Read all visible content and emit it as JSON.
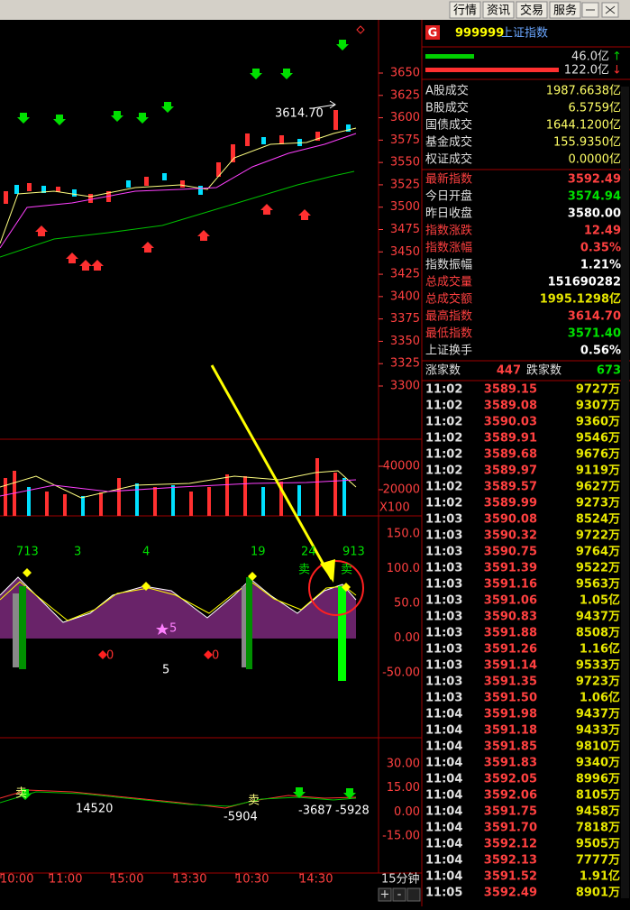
{
  "toolbar": {
    "buttons": [
      "行情",
      "资讯",
      "交易",
      "服务"
    ]
  },
  "quote": {
    "icon": "G",
    "code": "999999",
    "name": "上证指数",
    "flow": [
      {
        "value": "46.0亿",
        "color": "#00d000",
        "arrow": "↑"
      },
      {
        "value": "122.0亿",
        "color": "#ff3030",
        "arrow": "↓"
      }
    ],
    "turnover": [
      {
        "label": "A股成交",
        "value": "1987.6638亿"
      },
      {
        "label": "B股成交",
        "value": "6.5759亿"
      },
      {
        "label": "国债成交",
        "value": "1644.1200亿"
      },
      {
        "label": "基金成交",
        "value": "155.9350亿"
      },
      {
        "label": "权证成交",
        "value": "0.0000亿"
      }
    ],
    "stats": [
      {
        "label": "最新指数",
        "value": "3592.49",
        "label_color": "#ff4040",
        "color": "#ff4040"
      },
      {
        "label": "今日开盘",
        "value": "3574.94",
        "label_color": "#e0e0e0",
        "color": "#00e000"
      },
      {
        "label": "昨日收盘",
        "value": "3580.00",
        "label_color": "#e0e0e0",
        "color": "#ffffff"
      },
      {
        "label": "指数涨跌",
        "value": "12.49",
        "label_color": "#ff4040",
        "color": "#ff4040"
      },
      {
        "label": "指数涨幅",
        "value": "0.35%",
        "label_color": "#ff4040",
        "color": "#ff4040"
      },
      {
        "label": "指数振幅",
        "value": "1.21%",
        "label_color": "#e0e0e0",
        "color": "#ffffff"
      },
      {
        "label": "总成交量",
        "value": "151690282",
        "label_color": "#ff4040",
        "color": "#ffffff"
      },
      {
        "label": "总成交额",
        "value": "1995.1298亿",
        "label_color": "#ff4040",
        "color": "#e6e600"
      },
      {
        "label": "最高指数",
        "value": "3614.70",
        "label_color": "#ff4040",
        "color": "#ff4040"
      },
      {
        "label": "最低指数",
        "value": "3571.40",
        "label_color": "#ff4040",
        "color": "#00e000"
      },
      {
        "label": "上证换手",
        "value": "0.56%",
        "label_color": "#e0e0e0",
        "color": "#ffffff"
      }
    ],
    "breadth": {
      "up_label": "涨家数",
      "up": 447,
      "down_label": "跌家数",
      "down": 673
    }
  },
  "ticks": [
    [
      "11:02",
      "3589.15",
      "9727万"
    ],
    [
      "11:02",
      "3589.08",
      "9307万"
    ],
    [
      "11:02",
      "3590.03",
      "9360万"
    ],
    [
      "11:02",
      "3589.91",
      "9546万"
    ],
    [
      "11:02",
      "3589.68",
      "9676万"
    ],
    [
      "11:02",
      "3589.97",
      "9119万"
    ],
    [
      "11:02",
      "3589.57",
      "9627万"
    ],
    [
      "11:02",
      "3589.99",
      "9273万"
    ],
    [
      "11:03",
      "3590.08",
      "8524万"
    ],
    [
      "11:03",
      "3590.32",
      "9722万"
    ],
    [
      "11:03",
      "3590.75",
      "9764万"
    ],
    [
      "11:03",
      "3591.39",
      "9522万"
    ],
    [
      "11:03",
      "3591.16",
      "9563万"
    ],
    [
      "11:03",
      "3591.06",
      "1.05亿"
    ],
    [
      "11:03",
      "3590.83",
      "9437万"
    ],
    [
      "11:03",
      "3591.88",
      "8508万"
    ],
    [
      "11:03",
      "3591.26",
      "1.16亿"
    ],
    [
      "11:03",
      "3591.14",
      "9533万"
    ],
    [
      "11:03",
      "3591.35",
      "9723万"
    ],
    [
      "11:03",
      "3591.50",
      "1.06亿"
    ],
    [
      "11:04",
      "3591.98",
      "9437万"
    ],
    [
      "11:04",
      "3591.18",
      "9433万"
    ],
    [
      "11:04",
      "3591.85",
      "9810万"
    ],
    [
      "11:04",
      "3591.83",
      "9340万"
    ],
    [
      "11:04",
      "3592.05",
      "8996万"
    ],
    [
      "11:04",
      "3592.06",
      "8105万"
    ],
    [
      "11:04",
      "3591.75",
      "9458万"
    ],
    [
      "11:04",
      "3591.70",
      "7818万"
    ],
    [
      "11:04",
      "3592.12",
      "9505万"
    ],
    [
      "11:04",
      "3592.13",
      "7777万"
    ],
    [
      "11:04",
      "3591.52",
      "1.91亿"
    ],
    [
      "11:05",
      "3592.49",
      "8901万"
    ]
  ],
  "chart": {
    "price_axis": [
      3650,
      3625,
      3600,
      3575,
      3550,
      3525,
      3500,
      3475,
      3450,
      3425,
      3400,
      3375,
      3350,
      3325,
      3300
    ],
    "volume_axis": [
      40000,
      20000
    ],
    "volume_unit": "X100",
    "indicator_axis": [
      "150.0",
      "100.0",
      "50.0",
      "0.00",
      "-50.00"
    ],
    "macd_axis": [
      "30.00",
      "15.00",
      "0.00",
      "-15.00"
    ],
    "time_axis": [
      "10:00",
      "11:00",
      "15:00",
      "13:30",
      "10:30",
      "14:30"
    ],
    "period": "15分钟",
    "annotations": [
      {
        "text": "3614.70",
        "color": "#ffffff"
      },
      {
        "text": "713",
        "color": "#00e000"
      },
      {
        "text": "3",
        "color": "#00e000"
      },
      {
        "text": "4",
        "color": "#00e000"
      },
      {
        "text": "19",
        "color": "#00e000"
      },
      {
        "text": "24",
        "color": "#00e000"
      },
      {
        "text": "913",
        "color": "#00e000"
      },
      {
        "text": "卖",
        "color": "#00e000"
      },
      {
        "text": "卖",
        "color": "#00e000"
      },
      {
        "text": "5",
        "color": "#ff80ff"
      },
      {
        "text": "0",
        "color": "#ff3030"
      },
      {
        "text": "0",
        "color": "#ff3030"
      },
      {
        "text": "5",
        "color": "#ffffff"
      },
      {
        "text": "卖",
        "color": "#ffff80"
      },
      {
        "text": "卖",
        "color": "#ffff80"
      },
      {
        "text": "14520",
        "color": "#ffffff"
      },
      {
        "text": "-5904",
        "color": "#ffffff"
      },
      {
        "text": "-3687",
        "color": "#ffffff"
      },
      {
        "text": "-5928",
        "color": "#ffffff"
      }
    ]
  }
}
